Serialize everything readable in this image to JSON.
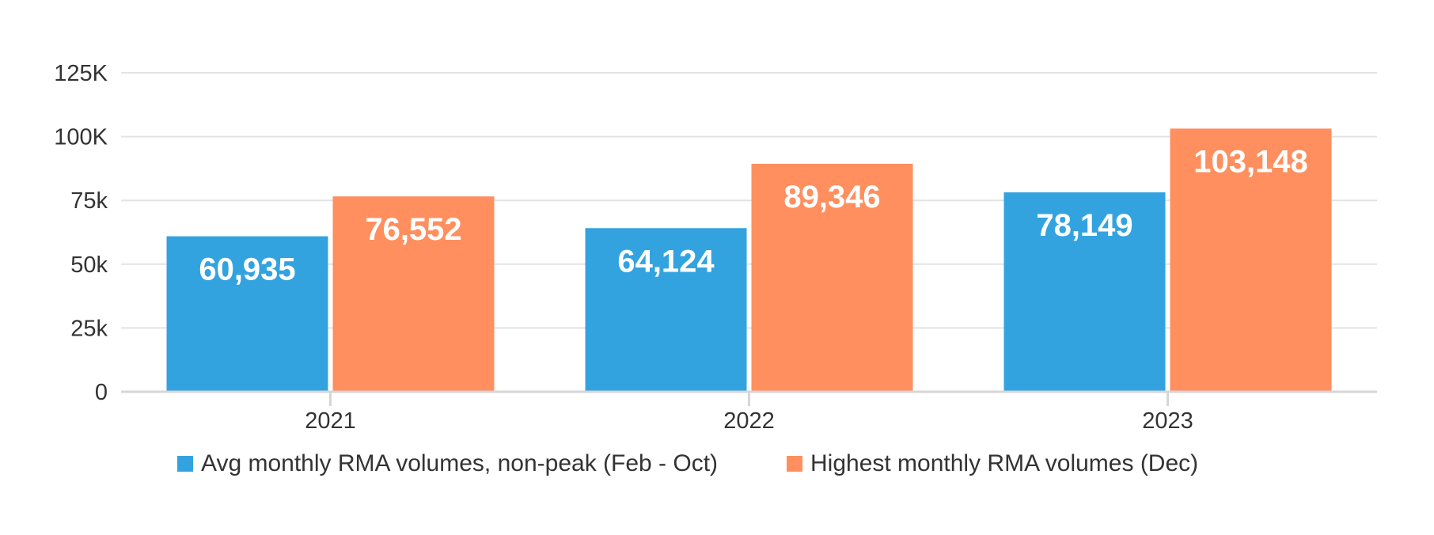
{
  "chart_data": {
    "type": "bar",
    "categories": [
      "2021",
      "2022",
      "2023"
    ],
    "series": [
      {
        "name": "Avg monthly RMA volumes, non-peak (Feb - Oct)",
        "values": [
          60935,
          64124,
          78149
        ],
        "labels": [
          "60,935",
          "64,124",
          "78,149"
        ],
        "color": "#33A3E0"
      },
      {
        "name": "Highest monthly RMA volumes (Dec)",
        "values": [
          76552,
          89346,
          103148
        ],
        "labels": [
          "76,552",
          "89,346",
          "103,148"
        ],
        "color": "#FF8F5E"
      }
    ],
    "ylim": [
      0,
      125000
    ],
    "yticks": [
      {
        "value": 0,
        "label": "0"
      },
      {
        "value": 25000,
        "label": "25k"
      },
      {
        "value": 50000,
        "label": "50k"
      },
      {
        "value": 75000,
        "label": "75k"
      },
      {
        "value": 100000,
        "label": "100K"
      },
      {
        "value": 125000,
        "label": "125K"
      }
    ],
    "grid": true,
    "legend_position": "bottom"
  }
}
